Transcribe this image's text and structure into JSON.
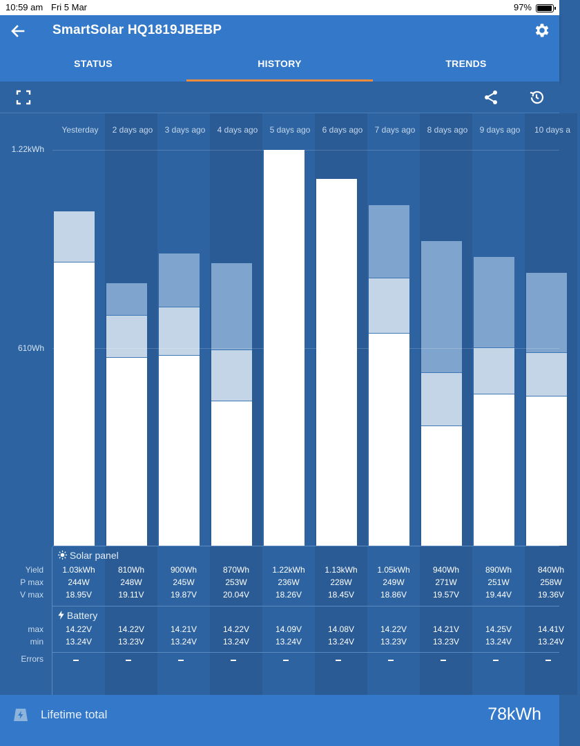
{
  "status_bar": {
    "time": "10:59 am",
    "date": "Fri 5 Mar",
    "battery": "97%"
  },
  "app_bar": {
    "title": "SmartSolar HQ1819JBEBP"
  },
  "tabs": [
    {
      "label": "STATUS",
      "active": false
    },
    {
      "label": "HISTORY",
      "active": true
    },
    {
      "label": "TRENDS",
      "active": false
    }
  ],
  "toolbar": {
    "fullscreen_icon": "fullscreen-icon",
    "share_icon": "share-icon",
    "history_icon": "history-icon"
  },
  "chart_data": {
    "type": "bar",
    "stacked": true,
    "y_ticks": [
      "1.22kWh",
      "610Wh"
    ],
    "categories": [
      "Yesterday",
      "2 days ago",
      "3 days ago",
      "4 days ago",
      "5 days ago",
      "6 days ago",
      "7 days ago",
      "8 days ago",
      "9 days ago",
      "10 days a"
    ],
    "series": [
      {
        "color": "#ffffff",
        "values": [
          875,
          580,
          586,
          446,
          1220,
          1130,
          654,
          369,
          468,
          462
        ]
      },
      {
        "color": "#c5d5e8",
        "values": [
          155,
          130,
          150,
          157,
          0,
          0,
          171,
          165,
          141,
          134
        ]
      },
      {
        "color": "#7fa5cf",
        "values": [
          0,
          100,
          164,
          267,
          0,
          0,
          225,
          406,
          281,
          244
        ]
      }
    ],
    "ylim": [
      0,
      1220
    ]
  },
  "table": {
    "solar_section": "Solar panel",
    "battery_section": "Battery",
    "row_labels": {
      "yield": "Yield",
      "pmax": "P max",
      "vmax": "V max",
      "bmax": "max",
      "bmin": "min",
      "errors": "Errors"
    },
    "columns": [
      {
        "yield": "1.03kWh",
        "pmax": "244W",
        "vmax": "18.95V",
        "bmax": "14.22V",
        "bmin": "13.24V"
      },
      {
        "yield": "810Wh",
        "pmax": "248W",
        "vmax": "19.11V",
        "bmax": "14.22V",
        "bmin": "13.23V"
      },
      {
        "yield": "900Wh",
        "pmax": "245W",
        "vmax": "19.87V",
        "bmax": "14.21V",
        "bmin": "13.24V"
      },
      {
        "yield": "870Wh",
        "pmax": "253W",
        "vmax": "20.04V",
        "bmax": "14.22V",
        "bmin": "13.24V"
      },
      {
        "yield": "1.22kWh",
        "pmax": "236W",
        "vmax": "18.26V",
        "bmax": "14.09V",
        "bmin": "13.24V"
      },
      {
        "yield": "1.13kWh",
        "pmax": "228W",
        "vmax": "18.45V",
        "bmax": "14.08V",
        "bmin": "13.24V"
      },
      {
        "yield": "1.05kWh",
        "pmax": "249W",
        "vmax": "18.86V",
        "bmax": "14.22V",
        "bmin": "13.23V"
      },
      {
        "yield": "940Wh",
        "pmax": "271W",
        "vmax": "19.57V",
        "bmax": "14.21V",
        "bmin": "13.23V"
      },
      {
        "yield": "890Wh",
        "pmax": "251W",
        "vmax": "19.44V",
        "bmax": "14.25V",
        "bmin": "13.24V"
      },
      {
        "yield": "840Wh",
        "pmax": "258W",
        "vmax": "19.36V",
        "bmax": "14.41V",
        "bmin": "13.24V"
      }
    ]
  },
  "footer": {
    "label": "Lifetime total",
    "value": "78kWh"
  }
}
